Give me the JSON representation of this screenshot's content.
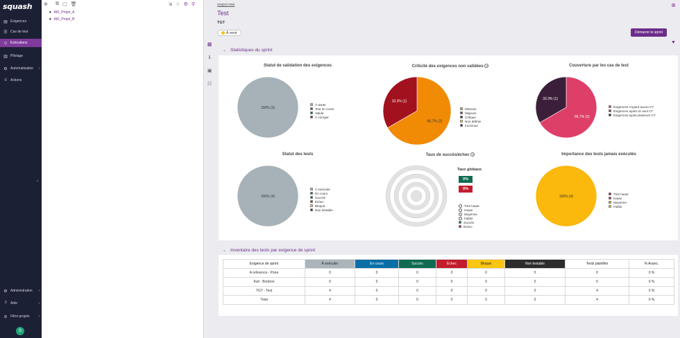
{
  "app": {
    "logo_text": "squash"
  },
  "sidebar": {
    "items": [
      {
        "label": "Exigences",
        "icon": "requirements-icon"
      },
      {
        "label": "Cas de test",
        "icon": "test-case-icon"
      },
      {
        "label": "Exécutions",
        "icon": "executions-icon",
        "active": true
      },
      {
        "label": "Pilotage",
        "icon": "piloting-icon"
      },
      {
        "label": "Automatisation",
        "icon": "automation-icon"
      },
      {
        "label": "Actions",
        "icon": "actions-icon"
      }
    ],
    "bottom_items": [
      {
        "label": "Administration",
        "icon": "admin-icon"
      },
      {
        "label": "Aide",
        "icon": "help-icon"
      },
      {
        "label": "Filtre projets",
        "icon": "filter-projects-icon"
      }
    ],
    "avatar_initial": "S"
  },
  "tree": {
    "nodes": [
      "AKI_Projet_A",
      "AKI_Projet_B"
    ]
  },
  "header": {
    "breadcrumb": "soapui new",
    "title": "Test",
    "subtitle": "TGT",
    "status": "À venir",
    "start_button": "Démarrer le sprint"
  },
  "stats": {
    "section_title": "Statistiques du sprint",
    "charts": {
      "validation": {
        "title": "Statut de validation des exigences",
        "slices": [
          {
            "label": "100% (3)",
            "value": 3,
            "color": "#a6b2b8"
          }
        ],
        "legend": [
          {
            "label": "À tester",
            "color": "#a6b2b8"
          },
          {
            "label": "Test en cours",
            "color": "#0a6fa7"
          },
          {
            "label": "Validé",
            "color": "#0f6b52"
          },
          {
            "label": "À corriger",
            "color": "#c21d2e"
          }
        ]
      },
      "criticite": {
        "title": "Criticité des exigences non validées",
        "slices": [
          {
            "label": "66.7% (2)",
            "value": 2,
            "color": "#f18a05"
          },
          {
            "label": "33.3% (1)",
            "value": 1,
            "color": "#a2111e"
          }
        ],
        "legend": [
          {
            "label": "Mineure",
            "color": "#f18a05"
          },
          {
            "label": "Majeure",
            "color": "#c21d2e"
          },
          {
            "label": "Critique",
            "color": "#7a0b12"
          },
          {
            "label": "Non définie",
            "color": "#fbc611"
          },
          {
            "label": "Inconnue",
            "color": "#3b2a3e"
          }
        ]
      },
      "couverture": {
        "title": "Couverture par les cas de test",
        "slices": [
          {
            "label": "66.7% (2)",
            "value": 2,
            "color": "#de3f69"
          },
          {
            "label": "33.3% (1)",
            "value": 1,
            "color": "#3b1f3a"
          }
        ],
        "legend": [
          {
            "label": "Exigences n'ayant aucun CT",
            "color": "#de3f69"
          },
          {
            "label": "Exigences ayant un seul CT",
            "color": "#8a2c60"
          },
          {
            "label": "Exigences ayant plusieurs CT",
            "color": "#3b1f3a"
          }
        ]
      },
      "statut_tests": {
        "title": "Statut des tests",
        "slices": [
          {
            "label": "100% (4)",
            "value": 4,
            "color": "#a6b2b8"
          }
        ],
        "legend": [
          {
            "label": "À exécuter",
            "color": "#a6b2b8"
          },
          {
            "label": "En cours",
            "color": "#0a6fa7"
          },
          {
            "label": "Succès",
            "color": "#0f6b52"
          },
          {
            "label": "Échec",
            "color": "#c21d2e"
          },
          {
            "label": "Bloqué",
            "color": "#fbc611"
          },
          {
            "label": "Non testable",
            "color": "#2c2c2c"
          }
        ]
      },
      "taux": {
        "title": "Taux de succès/échec",
        "global_label": "Taux globaux",
        "success_rate": "0%",
        "failure_rate": "0%",
        "success_color": "#0f6b52",
        "failure_color": "#c21d2e",
        "legend": [
          {
            "label": "Très haute",
            "kind": "circle"
          },
          {
            "label": "Haute",
            "kind": "circle"
          },
          {
            "label": "Moyenne",
            "kind": "circle"
          },
          {
            "label": "Faible",
            "kind": "circle"
          },
          {
            "label": "Succès",
            "kind": "square",
            "color": "#0f6b52"
          },
          {
            "label": "Échec",
            "kind": "square",
            "color": "#c21d2e"
          }
        ]
      },
      "importance": {
        "title": "Importance des tests jamais exécutés",
        "slices": [
          {
            "label": "100% (4)",
            "value": 4,
            "color": "#fbb80d"
          }
        ],
        "legend": [
          {
            "label": "Très haute",
            "color": "#a2111e"
          },
          {
            "label": "Haute",
            "color": "#c21d2e"
          },
          {
            "label": "Moyenne",
            "color": "#f18a05"
          },
          {
            "label": "Faible",
            "color": "#fbb80d"
          }
        ]
      }
    }
  },
  "inventory": {
    "section_title": "Inventaire des tests par exigence de sprint",
    "columns": [
      "Exigence de sprint",
      "À exécuter",
      "En cours",
      "Succès",
      "Échec",
      "Bloqué",
      "Non testable",
      "Tests planifiés",
      "% Avanc."
    ],
    "rows": [
      [
        "A reference - Poire",
        "0",
        "0",
        "0",
        "0",
        "0",
        "0",
        "0",
        "0 %"
      ],
      [
        "fruit - Bonbon",
        "0",
        "0",
        "0",
        "0",
        "0",
        "0",
        "0",
        "0 %"
      ],
      [
        "TGT - Test",
        "4",
        "0",
        "0",
        "0",
        "0",
        "0",
        "4",
        "0 %"
      ],
      [
        "Total",
        "4",
        "0",
        "0",
        "0",
        "0",
        "0",
        "4",
        "0 %"
      ]
    ]
  }
}
